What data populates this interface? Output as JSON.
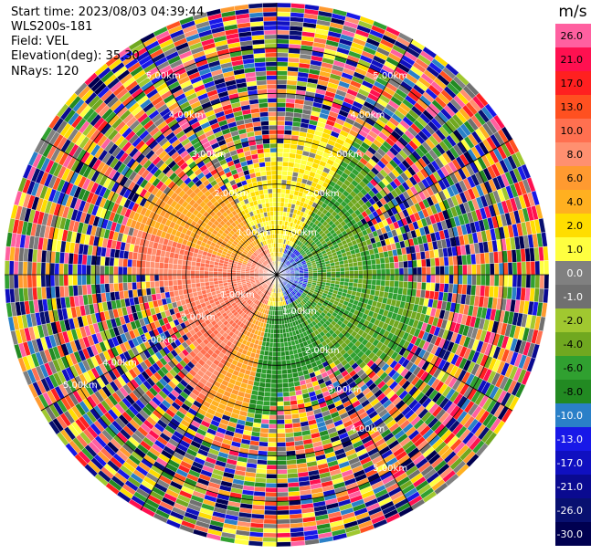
{
  "header": {
    "start_time": "Start time: 2023/08/03 04:39:44",
    "instrument": "WLS200s-181",
    "field": "Field: VEL",
    "elevation": "Elevation(deg): 35.30",
    "nrays": "NRays: 120"
  },
  "colorbar": {
    "unit": "m/s",
    "ticks": [
      "26.0",
      "21.0",
      "17.0",
      "13.0",
      "10.0",
      "8.0",
      "6.0",
      "4.0",
      "2.0",
      "1.0",
      "0.0",
      "-1.0",
      "-2.0",
      "-4.0",
      "-6.0",
      "-8.0",
      "-10.0",
      "-13.0",
      "-17.0",
      "-21.0",
      "-26.0",
      "-30.0"
    ],
    "colors": [
      "#ff60a0",
      "#ff1050",
      "#ff2020",
      "#ff5020",
      "#ff7050",
      "#ff9070",
      "#ff9a30",
      "#ffb020",
      "#ffdd00",
      "#ffff40",
      "#808080",
      "#707070",
      "#a0c830",
      "#70a820",
      "#30a030",
      "#228a22",
      "#2a80c8",
      "#1818e8",
      "#1010c0",
      "#0a0a90",
      "#081070",
      "#000050"
    ]
  },
  "range_labels": [
    "1.00km",
    "2.00km",
    "3.00km",
    "4.00km",
    "5.00km"
  ],
  "chart_data": {
    "type": "heatmap",
    "title": "",
    "nrays": 120,
    "elevation_deg": 35.3,
    "field": "VEL",
    "range_rings_km": [
      1,
      2,
      3,
      4,
      5
    ],
    "max_range_km": 6.0,
    "velocity_ranges_m_s": [
      {
        "region": "west-southwest near field",
        "value": 10
      },
      {
        "region": "west-north band",
        "value": 6
      },
      {
        "region": "north near center",
        "value": 2
      },
      {
        "region": "near center east",
        "value": -10
      },
      {
        "region": "east band",
        "value": -4
      },
      {
        "region": "south band",
        "value": -6
      },
      {
        "region": "outer ring",
        "value": "noise"
      }
    ]
  }
}
